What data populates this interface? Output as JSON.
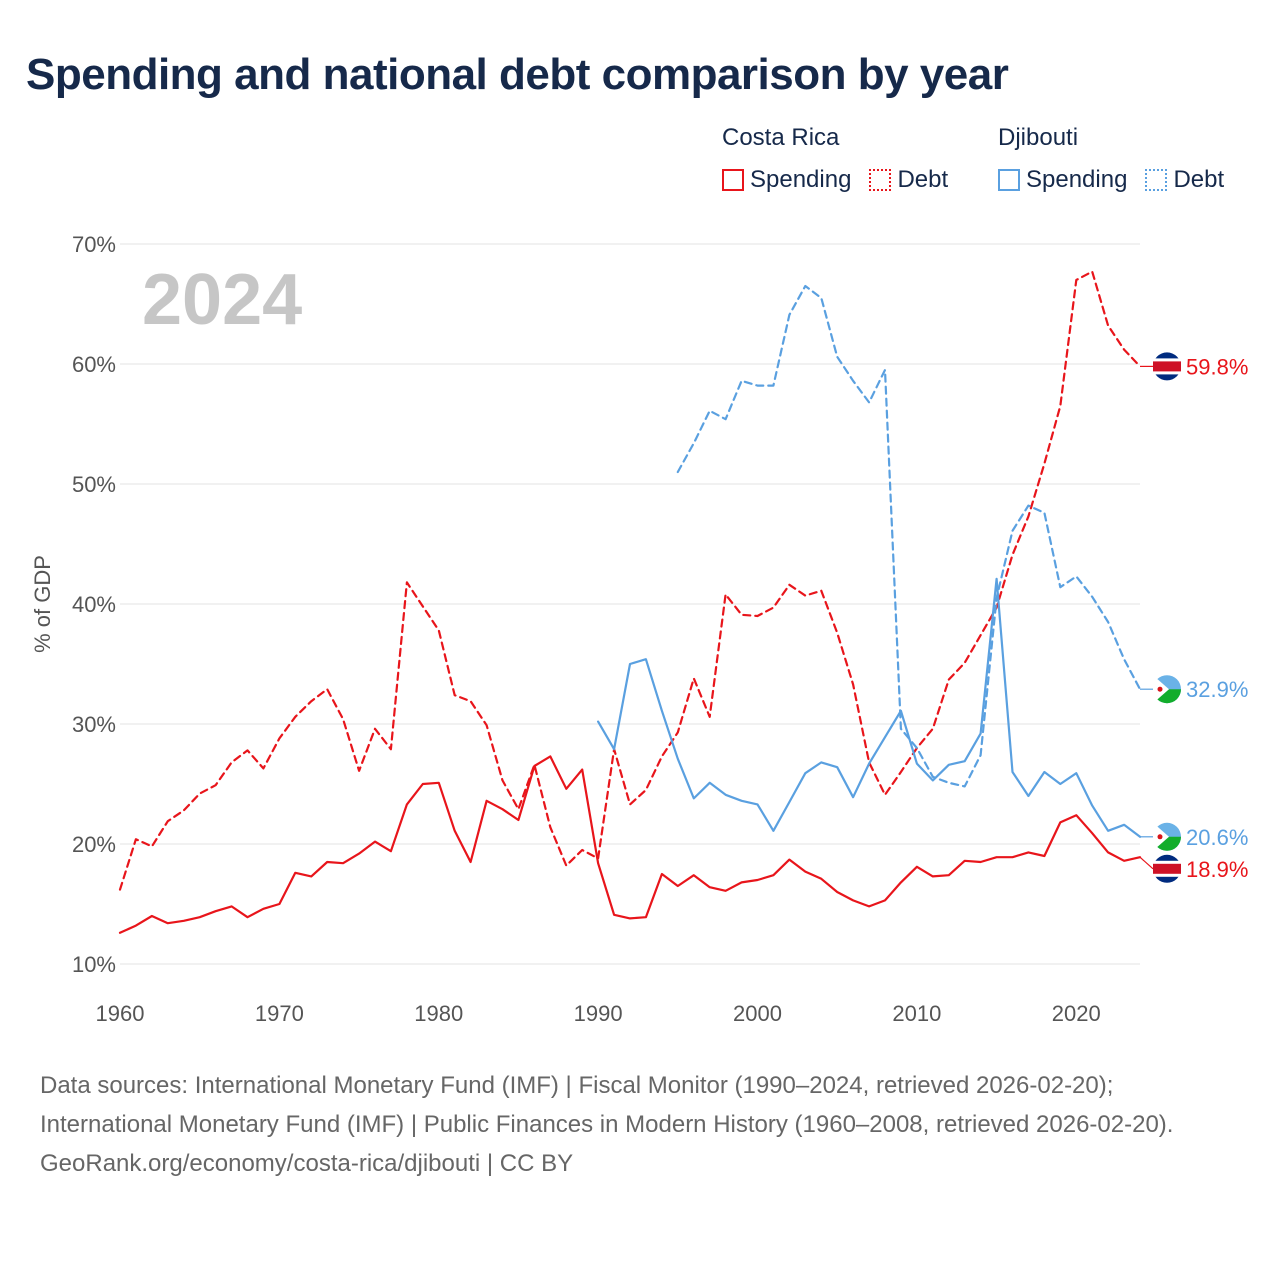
{
  "title": "Spending and national debt comparison by year",
  "legend": {
    "groups": [
      {
        "country": "Costa Rica",
        "color": "#e8151b",
        "items": [
          {
            "label": "Spending",
            "style": "solid"
          },
          {
            "label": "Debt",
            "style": "dotted"
          }
        ]
      },
      {
        "country": "Djibouti",
        "color": "#5aa0e0",
        "items": [
          {
            "label": "Spending",
            "style": "solid"
          },
          {
            "label": "Debt",
            "style": "dotted"
          }
        ]
      }
    ]
  },
  "footer": {
    "sources": "Data sources: International Monetary Fund (IMF) | Fiscal Monitor (1990–2024, retrieved 2026-02-20); International Monetary Fund (IMF) | Public Finances in Modern History (1960–2008, retrieved 2026-02-20).",
    "credit": "GeoRank.org/economy/costa-rica/djibouti | CC BY"
  },
  "chart_data": {
    "type": "line",
    "title": "Spending and national debt comparison by year",
    "ylabel": "% of GDP",
    "xlabel": "",
    "xlim": [
      1960,
      2024
    ],
    "ylim": [
      10,
      70
    ],
    "x_ticks": [
      1960,
      1970,
      1980,
      1990,
      2000,
      2010,
      2020
    ],
    "x_tick_labels": [
      "1960",
      "1970",
      "1980",
      "1990",
      "2000",
      "2010",
      "2020"
    ],
    "y_ticks": [
      10,
      20,
      30,
      40,
      50,
      60,
      70
    ],
    "y_tick_labels": [
      "10%",
      "20%",
      "30%",
      "40%",
      "50%",
      "60%",
      "70%"
    ],
    "grid": true,
    "year_label": "2024",
    "series": [
      {
        "name": "Costa Rica Spending",
        "color": "#e8151b",
        "dash": "solid",
        "end_label": "18.9%",
        "flag": "costa-rica",
        "start_year": 1960,
        "values": [
          12.6,
          13.2,
          14.0,
          13.4,
          13.6,
          13.9,
          14.4,
          14.8,
          13.9,
          14.6,
          15.0,
          17.6,
          17.3,
          18.5,
          18.4,
          19.2,
          20.2,
          19.4,
          23.3,
          25.0,
          25.1,
          21.1,
          18.5,
          23.6,
          22.9,
          22.0,
          26.5,
          27.3,
          24.6,
          26.2,
          18.4,
          14.1,
          13.8,
          13.9,
          17.5,
          16.5,
          17.4,
          16.4,
          16.1,
          16.8,
          17.0,
          17.4,
          18.7,
          17.7,
          17.1,
          16.0,
          15.3,
          14.8,
          15.3,
          16.8,
          18.1,
          17.3,
          17.4,
          18.6,
          18.5,
          18.9,
          18.9,
          19.3,
          19.0,
          21.8,
          22.4,
          20.9,
          19.3,
          18.6,
          18.9
        ]
      },
      {
        "name": "Costa Rica Debt",
        "color": "#e8151b",
        "dash": "dashed",
        "end_label": "59.8%",
        "flag": "costa-rica",
        "start_year": 1960,
        "values": [
          16.2,
          20.4,
          19.8,
          21.9,
          22.8,
          24.2,
          24.9,
          26.8,
          27.8,
          26.3,
          28.8,
          30.6,
          31.9,
          32.9,
          30.4,
          26.1,
          29.6,
          27.9,
          41.8,
          39.8,
          37.8,
          32.4,
          31.9,
          29.9,
          25.3,
          22.9,
          26.6,
          21.4,
          18.2,
          19.5,
          18.8,
          27.9,
          23.3,
          24.5,
          27.3,
          29.3,
          33.8,
          30.6,
          40.8,
          39.1,
          39.0,
          39.7,
          41.6,
          40.7,
          41.1,
          37.6,
          33.3,
          26.8,
          24.1,
          26.0,
          28.0,
          29.6,
          33.7,
          35.1,
          37.4,
          39.7,
          44.1,
          47.3,
          51.7,
          56.5,
          67.0,
          67.7,
          63.2,
          61.2,
          59.8
        ]
      },
      {
        "name": "Djibouti Spending",
        "color": "#5aa0e0",
        "dash": "solid",
        "end_label": "20.6%",
        "flag": "djibouti",
        "start_year": 1990,
        "values": [
          30.2,
          27.9,
          35.0,
          35.4,
          31.1,
          27.1,
          23.8,
          25.1,
          24.1,
          23.6,
          23.3,
          21.1,
          23.5,
          25.9,
          26.8,
          26.4,
          23.9,
          26.7,
          28.9,
          31.1,
          26.7,
          25.3,
          26.6,
          26.9,
          29.2,
          42.1,
          26.0,
          24.0,
          26.0,
          25.0,
          25.9,
          23.2,
          21.1,
          21.6,
          20.6
        ]
      },
      {
        "name": "Djibouti Debt",
        "color": "#5aa0e0",
        "dash": "dashed",
        "end_label": "32.9%",
        "flag": "djibouti",
        "start_year": 1995,
        "values": [
          51.0,
          53.4,
          56.1,
          55.4,
          58.6,
          58.2,
          58.2,
          64.1,
          66.5,
          65.5,
          60.6,
          58.6,
          56.8,
          59.5,
          29.6,
          28.0,
          25.6,
          25.1,
          24.8,
          27.4,
          40.5,
          46.1,
          48.2,
          47.6,
          41.4,
          42.3,
          40.6,
          38.5,
          35.4,
          32.9
        ]
      }
    ]
  }
}
